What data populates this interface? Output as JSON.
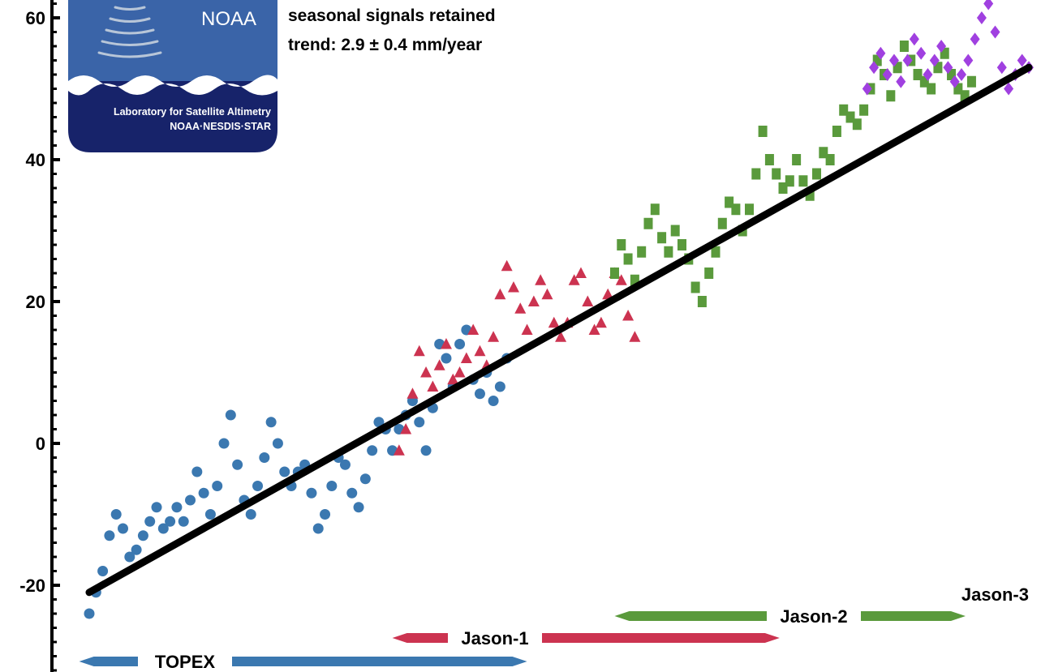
{
  "colors": {
    "topex": "#3b78b0",
    "jason1": "#cc3350",
    "jason2": "#5a9a3c",
    "jason3": "#a040e0",
    "trend": "#000000",
    "logo_blue": "#3a64a8",
    "logo_navy": "#17236a"
  },
  "logo": {
    "brand": "NOAA",
    "line1": "Laboratory for Satellite Altimetry",
    "line2": "NOAA·NESDIS·STAR"
  },
  "annotations": {
    "line1": "seasonal signals retained",
    "line2": "trend:  2.9 ± 0.4 mm/year"
  },
  "chart_data": {
    "type": "scatter",
    "title": "",
    "xlabel": "",
    "ylabel": "",
    "ylim": [
      -32,
      62
    ],
    "xlim": [
      1992.2,
      2021.1
    ],
    "yticks": [
      -20,
      0,
      20,
      40,
      60
    ],
    "ytick_labels": [
      "-20",
      "0",
      "20",
      "40",
      "60"
    ],
    "grid": false,
    "trend_line": {
      "rate_mm_per_year": 2.9,
      "uncertainty": 0.4,
      "start": [
        1993.0,
        -21
      ],
      "end": [
        2020.9,
        53
      ]
    },
    "series": [
      {
        "name": "TOPEX",
        "marker": "circle",
        "color": "#3b78b0",
        "x": [
          1993.0,
          1993.2,
          1993.4,
          1993.6,
          1993.8,
          1994.0,
          1994.2,
          1994.4,
          1994.6,
          1994.8,
          1995.0,
          1995.2,
          1995.4,
          1995.6,
          1995.8,
          1996.0,
          1996.2,
          1996.4,
          1996.6,
          1996.8,
          1997.0,
          1997.2,
          1997.4,
          1997.6,
          1997.8,
          1998.0,
          1998.2,
          1998.4,
          1998.6,
          1998.8,
          1999.0,
          1999.2,
          1999.4,
          1999.6,
          1999.8,
          2000.0,
          2000.2,
          2000.4,
          2000.6,
          2000.8,
          2001.0,
          2001.2,
          2001.4,
          2001.6,
          2001.8,
          2002.0,
          2002.2,
          2002.4,
          2002.6,
          2002.8,
          2003.0,
          2003.2,
          2003.4,
          2003.6,
          2003.8,
          2004.0,
          2004.2,
          2004.4,
          2004.6,
          2004.8,
          2005.0,
          2005.2,
          2005.4
        ],
        "y": [
          -24,
          -21,
          -18,
          -13,
          -10,
          -12,
          -16,
          -15,
          -13,
          -11,
          -9,
          -12,
          -11,
          -9,
          -11,
          -8,
          -4,
          -7,
          -10,
          -6,
          0,
          4,
          -3,
          -8,
          -10,
          -6,
          -2,
          3,
          0,
          -4,
          -6,
          -4,
          -3,
          -7,
          -12,
          -10,
          -6,
          -2,
          -3,
          -7,
          -9,
          -5,
          -1,
          3,
          2,
          -1,
          2,
          4,
          6,
          3,
          -1,
          5,
          14,
          12,
          8,
          14,
          16,
          9,
          7,
          10,
          6,
          8,
          12
        ]
      },
      {
        "name": "Jason-1",
        "marker": "triangle",
        "color": "#cc3350",
        "x": [
          2002.2,
          2002.4,
          2002.6,
          2002.8,
          2003.0,
          2003.2,
          2003.4,
          2003.6,
          2003.8,
          2004.0,
          2004.2,
          2004.4,
          2004.6,
          2004.8,
          2005.0,
          2005.2,
          2005.4,
          2005.6,
          2005.8,
          2006.0,
          2006.2,
          2006.4,
          2006.6,
          2006.8,
          2007.0,
          2007.2,
          2007.4,
          2007.6,
          2007.8,
          2008.0,
          2008.2,
          2008.4,
          2008.6,
          2008.8,
          2009.0,
          2009.2
        ],
        "y": [
          -1,
          2,
          7,
          13,
          10,
          8,
          11,
          14,
          9,
          10,
          12,
          16,
          13,
          11,
          15,
          21,
          25,
          22,
          19,
          16,
          20,
          23,
          21,
          17,
          15,
          17,
          23,
          24,
          20,
          16,
          17,
          21,
          24,
          23,
          18,
          15
        ]
      },
      {
        "name": "Jason-2",
        "marker": "square",
        "color": "#5a9a3c",
        "x": [
          2008.6,
          2008.8,
          2009.0,
          2009.2,
          2009.4,
          2009.6,
          2009.8,
          2010.0,
          2010.2,
          2010.4,
          2010.6,
          2010.8,
          2011.0,
          2011.2,
          2011.4,
          2011.6,
          2011.8,
          2012.0,
          2012.2,
          2012.4,
          2012.6,
          2012.8,
          2013.0,
          2013.2,
          2013.4,
          2013.6,
          2013.8,
          2014.0,
          2014.2,
          2014.4,
          2014.6,
          2014.8,
          2015.0,
          2015.2,
          2015.4,
          2015.6,
          2015.8,
          2016.0,
          2016.2,
          2016.4,
          2016.6,
          2016.8,
          2017.0,
          2017.2,
          2017.4,
          2017.6,
          2017.8,
          2018.0,
          2018.2,
          2018.4,
          2018.6,
          2018.8,
          2019.0,
          2019.2
        ],
        "y": [
          24,
          28,
          26,
          23,
          27,
          31,
          33,
          29,
          27,
          30,
          28,
          26,
          22,
          20,
          24,
          27,
          31,
          34,
          33,
          30,
          33,
          38,
          44,
          40,
          38,
          36,
          37,
          40,
          37,
          35,
          38,
          41,
          40,
          44,
          47,
          46,
          45,
          47,
          50,
          54,
          52,
          49,
          53,
          56,
          54,
          52,
          51,
          50,
          53,
          55,
          52,
          50,
          49,
          51
        ]
      },
      {
        "name": "Jason-3",
        "marker": "diamond",
        "color": "#a040e0",
        "x": [
          2016.1,
          2016.3,
          2016.5,
          2016.7,
          2016.9,
          2017.1,
          2017.3,
          2017.5,
          2017.7,
          2017.9,
          2018.1,
          2018.3,
          2018.5,
          2018.7,
          2018.9,
          2019.1,
          2019.3,
          2019.5,
          2019.7,
          2019.9,
          2020.1,
          2020.3,
          2020.5,
          2020.7,
          2020.9
        ],
        "y": [
          50,
          53,
          55,
          52,
          54,
          51,
          54,
          57,
          55,
          52,
          54,
          56,
          53,
          51,
          52,
          54,
          57,
          60,
          62,
          58,
          53,
          50,
          52,
          54,
          53
        ]
      }
    ],
    "missions": [
      {
        "name": "TOPEX",
        "start": 1992.7,
        "end": 2006.0,
        "color": "#3b78b0"
      },
      {
        "name": "Jason-1",
        "start": 2002.0,
        "end": 2013.5,
        "color": "#cc3350"
      },
      {
        "name": "Jason-2",
        "start": 2008.6,
        "end": 2019.8,
        "color": "#5a9a3c"
      },
      {
        "name": "Jason-3",
        "start": 2016.1,
        "end": 2021.1,
        "color": "#a040e0"
      }
    ]
  }
}
